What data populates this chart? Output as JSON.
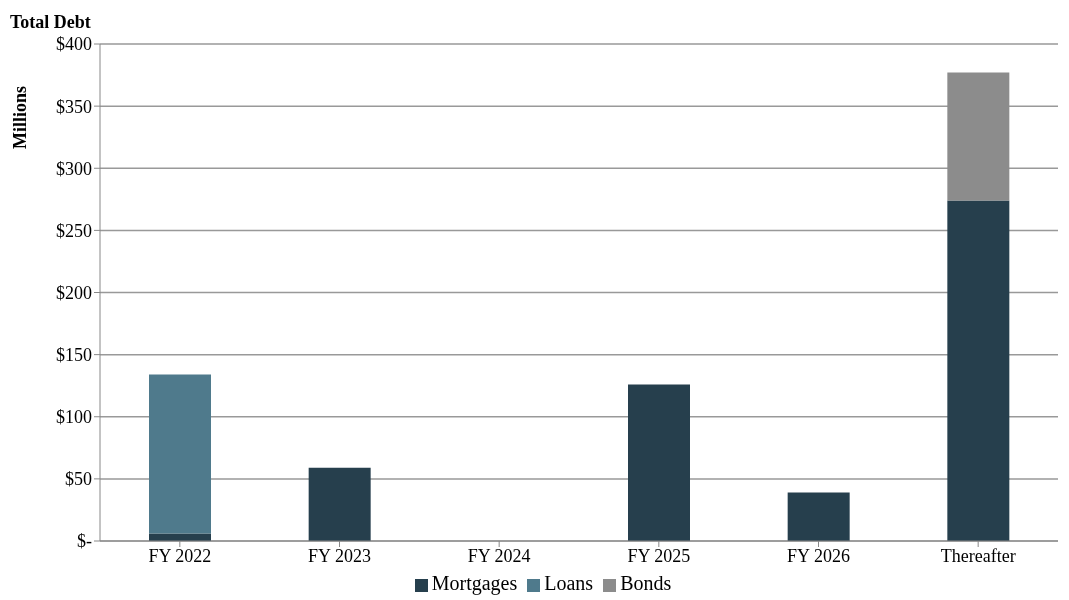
{
  "chart_data": {
    "type": "bar",
    "title": "Total Debt",
    "ylabel": "Millions",
    "categories": [
      "FY 2022",
      "FY 2023",
      "FY 2024",
      "FY 2025",
      "FY 2026",
      "Thereafter"
    ],
    "series": [
      {
        "name": "Mortgages",
        "color": "#263f4d",
        "values": [
          6,
          59,
          null,
          126,
          39,
          274
        ]
      },
      {
        "name": "Loans",
        "color": "#4f7a8c",
        "values": [
          128,
          null,
          null,
          null,
          null,
          null
        ]
      },
      {
        "name": "Bonds",
        "color": "#8c8c8c",
        "values": [
          null,
          null,
          null,
          null,
          null,
          103
        ]
      }
    ],
    "stacked": true,
    "ylim": [
      0,
      400
    ],
    "yticks": [
      {
        "value": 0,
        "label": "$-"
      },
      {
        "value": 50,
        "label": "$50"
      },
      {
        "value": 100,
        "label": "$100"
      },
      {
        "value": 150,
        "label": "$150"
      },
      {
        "value": 200,
        "label": "$200"
      },
      {
        "value": 250,
        "label": "$250"
      },
      {
        "value": 300,
        "label": "$300"
      },
      {
        "value": 350,
        "label": "$350"
      },
      {
        "value": 400,
        "label": "$400"
      }
    ],
    "grid": "y",
    "legend": "bottom"
  }
}
